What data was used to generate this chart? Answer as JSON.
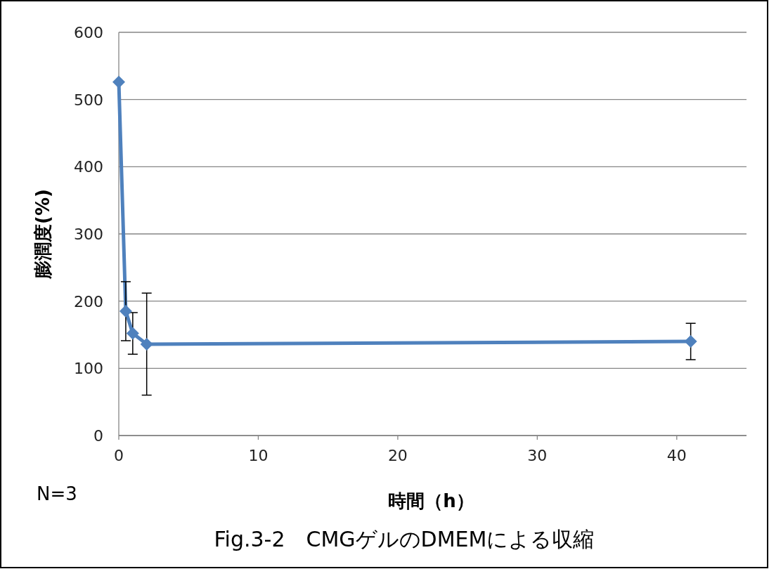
{
  "chart_data": {
    "type": "line",
    "xlabel": "時間（h）",
    "ylabel": "膨潤度(%)",
    "annotations": [
      "N=3",
      "Fig.3-2　CMGゲルのDMEMによる収縮"
    ],
    "x": [
      0,
      0.5,
      1,
      2,
      41
    ],
    "series": [
      {
        "color": "#4f81bd",
        "values": [
          526,
          185,
          152,
          136,
          140
        ],
        "errors": [
          null,
          44,
          31,
          76,
          27
        ]
      }
    ],
    "xlim": [
      0,
      45
    ],
    "xticks": [
      0,
      10,
      20,
      30,
      40
    ],
    "ylim": [
      0,
      600
    ],
    "yticks": [
      0,
      100,
      200,
      300,
      400,
      500,
      600
    ],
    "grid": "y",
    "marker": "diamond",
    "line_style": "solid"
  }
}
